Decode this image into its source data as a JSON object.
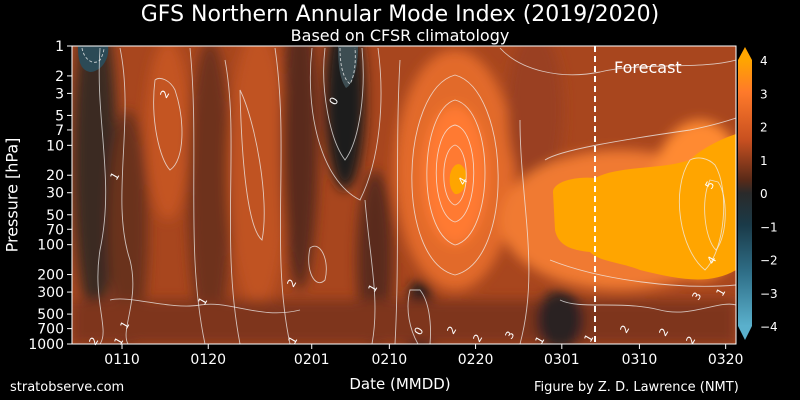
{
  "chart_data": {
    "type": "heatmap",
    "title": "GFS Northern Annular Mode Index (2019/2020)",
    "subtitle": "Based on CFSR climatology",
    "xlabel": "Date (MMDD)",
    "ylabel": "Pressure [hPa]",
    "x_ticks": [
      "0110",
      "0120",
      "0201",
      "0210",
      "0220",
      "0301",
      "0310",
      "0320"
    ],
    "y_ticks": [
      "1",
      "2",
      "3",
      "5",
      "7",
      "10",
      "20",
      "30",
      "50",
      "70",
      "100",
      "200",
      "300",
      "500",
      "700",
      "1000"
    ],
    "y_scale": "log",
    "ylim": [
      1000,
      1
    ],
    "colorbar": {
      "ticks": [
        "4",
        "3",
        "2",
        "1",
        "0",
        "−1",
        "−2",
        "−3",
        "−4"
      ],
      "range": [
        -4,
        4
      ]
    },
    "annotation": "Forecast",
    "contour_labels": [
      "2",
      "1",
      "1",
      "1",
      "1",
      "2",
      "2",
      "1",
      "0",
      "1",
      "0",
      "2",
      "4",
      "2",
      "3",
      "1",
      "1",
      "2",
      "2",
      "2",
      "5",
      "4",
      "3",
      "1"
    ],
    "colors": {
      "negative": "#3f8fa8",
      "neutral": "#2a2a2a",
      "low_positive": "#8a3a18",
      "high_positive": "#ff7a2a",
      "saturated": "#ffa500"
    }
  },
  "footer": {
    "source": "stratobserve.com",
    "credit": "Figure by Z. D. Lawrence (NMT)"
  }
}
